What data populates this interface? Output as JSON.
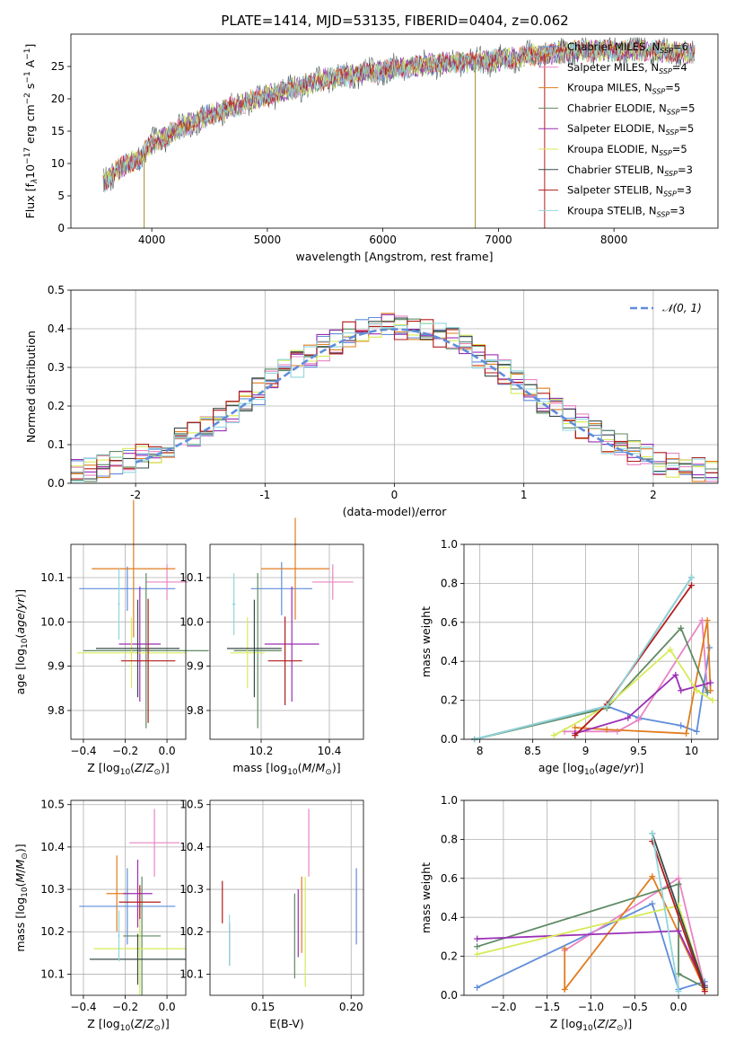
{
  "figure_title": "PLATE=1414, MJD=53135, FIBERID=0404, z=0.062",
  "series_styles": [
    {
      "name": "Chabrier MILES, N_SSP=6",
      "color": "#5f8ddb"
    },
    {
      "name": "Salpeter MILES, N_SSP=4",
      "color": "#e884c4"
    },
    {
      "name": "Kroupa MILES, N_SSP=5",
      "color": "#e07d20"
    },
    {
      "name": "Chabrier ELODIE, N_SSP=5",
      "color": "#5f8a63"
    },
    {
      "name": "Salpeter ELODIE, N_SSP=5",
      "color": "#9a2fb5"
    },
    {
      "name": "Kroupa ELODIE, N_SSP=5",
      "color": "#d8ea5a"
    },
    {
      "name": "Chabrier STELIB, N_SSP=3",
      "color": "#3a4a4a"
    },
    {
      "name": "Salpeter STELIB, N_SSP=3",
      "color": "#b31b1b"
    },
    {
      "name": "Kroupa STELIB, N_SSP=3",
      "color": "#8fd7dc"
    }
  ],
  "chart_data": [
    {
      "id": "spectrum",
      "type": "line",
      "xlabel": "wavelength [Angstrom, rest frame]",
      "ylabel": "Flux [f_λ 10^-17 erg cm^-2 s^-1 A^-1]",
      "xlim": [
        3300,
        8900
      ],
      "ylim": [
        0,
        30
      ],
      "xticks": [
        4000,
        5000,
        6000,
        7000,
        8000
      ],
      "yticks": [
        0,
        5,
        10,
        15,
        20,
        25
      ],
      "grid": false,
      "legend_position": "upper right",
      "legend": [
        {
          "label": "Chabrier MILES, N",
          "sub": "SSP",
          "suffix": "=6"
        },
        {
          "label": "Salpeter MILES, N",
          "sub": "SSP",
          "suffix": "=4"
        },
        {
          "label": "Kroupa MILES, N",
          "sub": "SSP",
          "suffix": "=5"
        },
        {
          "label": "Chabrier ELODIE, N",
          "sub": "SSP",
          "suffix": "=5"
        },
        {
          "label": "Salpeter ELODIE, N",
          "sub": "SSP",
          "suffix": "=5"
        },
        {
          "label": "Kroupa ELODIE, N",
          "sub": "SSP",
          "suffix": "=5"
        },
        {
          "label": "Chabrier STELIB, N",
          "sub": "SSP",
          "suffix": "=3"
        },
        {
          "label": "Salpeter STELIB, N",
          "sub": "SSP",
          "suffix": "=3"
        },
        {
          "label": "Kroupa STELIB, N",
          "sub": "SSP",
          "suffix": "=3"
        }
      ],
      "continuum": [
        [
          3580,
          7
        ],
        [
          3700,
          9
        ],
        [
          3800,
          10
        ],
        [
          3900,
          11
        ],
        [
          4000,
          13
        ],
        [
          4200,
          15
        ],
        [
          4500,
          17.5
        ],
        [
          5000,
          20.5
        ],
        [
          5500,
          23
        ],
        [
          6000,
          24.5
        ],
        [
          6500,
          25.5
        ],
        [
          7000,
          26
        ],
        [
          7400,
          27
        ],
        [
          7800,
          27.5
        ],
        [
          8300,
          27.5
        ],
        [
          8700,
          27
        ]
      ],
      "noise": 2.5,
      "absorption_lines": [
        [
          3934,
          0
        ],
        [
          6800,
          0
        ],
        [
          7400,
          0
        ]
      ]
    },
    {
      "id": "residuals",
      "type": "histogram",
      "xlabel": "(data-model)/error",
      "ylabel": "Normed distribution",
      "xlim": [
        -2.5,
        2.5
      ],
      "ylim": [
        0,
        0.5
      ],
      "xticks": [
        -2,
        -1,
        0,
        1,
        2
      ],
      "yticks": [
        0.0,
        0.1,
        0.2,
        0.3,
        0.4,
        0.5
      ],
      "grid": true,
      "reference_curve": {
        "label": "N(0,1)",
        "color": "#5f8ddb",
        "style": "dashed",
        "range": [
          -2,
          2
        ]
      },
      "bin_width": 0.1
    },
    {
      "id": "age_vs_Z",
      "type": "errorbar",
      "xlabel": "Z [log10(Z/Z⊙)]",
      "ylabel": "age [log10(age/yr)]",
      "xlim": [
        -0.46,
        0.09
      ],
      "ylim": [
        9.735,
        10.175
      ],
      "xticks": [
        -0.4,
        -0.2,
        0.0
      ],
      "xtick_labels": [
        "−0.4",
        "−0.2",
        "0.0"
      ],
      "yticks": [
        9.8,
        9.9,
        10.0,
        10.1
      ],
      "grid": true,
      "points": [
        {
          "x": -0.19,
          "xerr": 0.23,
          "y": 10.075,
          "yerr": 0.05
        },
        {
          "x": 0.0,
          "xerr": 0.1,
          "y": 10.09,
          "yerr": 0.04
        },
        {
          "x": -0.16,
          "xerr": 0.2,
          "y": 10.12,
          "yerr": 0.155
        },
        {
          "x": -0.1,
          "xerr": 0.3,
          "y": 9.935,
          "yerr": 0.175
        },
        {
          "x": -0.13,
          "xerr": 0.1,
          "y": 9.95,
          "yerr": 0.13
        },
        {
          "x": -0.17,
          "xerr": 0.26,
          "y": 9.93,
          "yerr": 0.08
        },
        {
          "x": -0.14,
          "xerr": 0.2,
          "y": 9.94,
          "yerr": 0.11
        },
        {
          "x": -0.09,
          "xerr": 0.13,
          "y": 9.912,
          "yerr": 0.14
        },
        {
          "x": -0.23,
          "xerr": 0.005,
          "y": 10.04,
          "yerr": 0.08
        }
      ]
    },
    {
      "id": "age_vs_mass",
      "type": "errorbar",
      "xlabel": "mass [log10(M/M⊙)]",
      "ylabel": "",
      "xlim": [
        10.05,
        10.5
      ],
      "ylim": [
        9.735,
        10.175
      ],
      "xticks": [
        10.2,
        10.4
      ],
      "xtick_labels": [
        "10.2",
        "10.4"
      ],
      "yticks": [
        9.8,
        9.9,
        10.0,
        10.1
      ],
      "grid": true,
      "points": [
        {
          "x": 10.26,
          "xerr": 0.09,
          "y": 10.075,
          "yerr": 0.06
        },
        {
          "x": 10.41,
          "xerr": 0.06,
          "y": 10.09,
          "yerr": 0.04
        },
        {
          "x": 10.3,
          "xerr": 0.1,
          "y": 10.12,
          "yerr": 0.115
        },
        {
          "x": 10.19,
          "xerr": 0.07,
          "y": 9.935,
          "yerr": 0.175
        },
        {
          "x": 10.29,
          "xerr": 0.08,
          "y": 9.95,
          "yerr": 0.13
        },
        {
          "x": 10.16,
          "xerr": 0.05,
          "y": 9.93,
          "yerr": 0.08
        },
        {
          "x": 10.18,
          "xerr": 0.08,
          "y": 9.94,
          "yerr": 0.11
        },
        {
          "x": 10.27,
          "xerr": 0.05,
          "y": 9.912,
          "yerr": 0.1
        },
        {
          "x": 10.12,
          "xerr": 0.005,
          "y": 10.04,
          "yerr": 0.07
        }
      ]
    },
    {
      "id": "massweight_vs_age",
      "type": "line",
      "xlabel": "age [log10(age/yr)]",
      "ylabel": "mass weight",
      "xlim": [
        7.85,
        10.25
      ],
      "ylim": [
        0,
        1
      ],
      "xticks": [
        8.0,
        8.5,
        9.0,
        9.5,
        10.0
      ],
      "yticks": [
        0.0,
        0.2,
        0.4,
        0.6,
        0.8,
        1.0
      ],
      "grid": true,
      "series": [
        {
          "x": [
            7.95,
            9.2,
            9.5,
            9.9,
            10.05,
            10.17
          ],
          "y": [
            0.0,
            0.17,
            0.11,
            0.07,
            0.04,
            0.47
          ]
        },
        {
          "x": [
            8.8,
            9.3,
            9.5,
            10.1,
            10.15
          ],
          "y": [
            0.04,
            0.04,
            0.1,
            0.61,
            0.25
          ]
        },
        {
          "x": [
            8.9,
            9.2,
            9.95,
            10.15,
            10.18
          ],
          "y": [
            0.06,
            0.05,
            0.03,
            0.61,
            0.25
          ]
        },
        {
          "x": [
            7.95,
            9.2,
            9.9,
            10.15
          ],
          "y": [
            0.0,
            0.16,
            0.57,
            0.24
          ]
        },
        {
          "x": [
            8.9,
            9.4,
            9.85,
            9.9,
            10.18
          ],
          "y": [
            0.03,
            0.11,
            0.33,
            0.25,
            0.29
          ]
        },
        {
          "x": [
            8.7,
            9.2,
            9.8,
            10.05,
            10.2
          ],
          "y": [
            0.02,
            0.17,
            0.46,
            0.25,
            0.2
          ]
        },
        {
          "x": [
            7.95,
            9.2,
            10.0
          ],
          "y": [
            0.0,
            0.17,
            0.83
          ]
        },
        {
          "x": [
            8.9,
            9.2,
            10.0
          ],
          "y": [
            0.02,
            0.18,
            0.79
          ]
        },
        {
          "x": [
            7.95,
            9.2,
            10.0
          ],
          "y": [
            0.0,
            0.17,
            0.83
          ]
        }
      ]
    },
    {
      "id": "mass_vs_Z",
      "type": "errorbar",
      "xlabel": "Z [log10(Z/Z⊙)]",
      "ylabel": "mass [log10(M/M⊙)]",
      "xlim": [
        -0.46,
        0.09
      ],
      "ylim": [
        10.05,
        10.51
      ],
      "xticks": [
        -0.4,
        -0.2,
        0.0
      ],
      "xtick_labels": [
        "−0.4",
        "−0.2",
        "0.0"
      ],
      "yticks": [
        10.1,
        10.2,
        10.3,
        10.4,
        10.5
      ],
      "grid": true,
      "points": [
        {
          "x": -0.19,
          "xerr": 0.23,
          "y": 10.26,
          "yerr": 0.09
        },
        {
          "x": -0.06,
          "xerr": 0.12,
          "y": 10.41,
          "yerr": 0.08
        },
        {
          "x": -0.24,
          "xerr": 0.05,
          "y": 10.29,
          "yerr": 0.09
        },
        {
          "x": -0.12,
          "xerr": 0.09,
          "y": 10.19,
          "yerr": 0.14
        },
        {
          "x": -0.14,
          "xerr": 0.07,
          "y": 10.29,
          "yerr": 0.08
        },
        {
          "x": -0.13,
          "xerr": 0.22,
          "y": 10.16,
          "yerr": 0.11
        },
        {
          "x": -0.14,
          "xerr": 0.23,
          "y": 10.135,
          "yerr": 0.06
        },
        {
          "x": -0.13,
          "xerr": 0.1,
          "y": 10.27,
          "yerr": 0.04
        },
        {
          "x": -0.23,
          "xerr": 0.005,
          "y": 10.19,
          "yerr": 0.06
        }
      ]
    },
    {
      "id": "mass_vs_EBV",
      "type": "errorbar",
      "xlabel": "E(B-V)",
      "ylabel": "",
      "xlim": [
        0.12,
        0.207
      ],
      "ylim": [
        10.05,
        10.51
      ],
      "xticks": [
        0.15,
        0.2
      ],
      "xtick_labels": [
        "0.15",
        "0.20"
      ],
      "yticks": [
        10.1,
        10.2,
        10.3,
        10.4,
        10.5
      ],
      "grid": true,
      "points": [
        {
          "x": 0.203,
          "xerr": 0.0,
          "y": 10.26,
          "yerr": 0.09
        },
        {
          "x": 0.176,
          "xerr": 0.0,
          "y": 10.41,
          "yerr": 0.08
        },
        {
          "x": 0.172,
          "xerr": 0.0,
          "y": 10.24,
          "yerr": 0.09
        },
        {
          "x": 0.168,
          "xerr": 0.0,
          "y": 10.19,
          "yerr": 0.1
        },
        {
          "x": 0.17,
          "xerr": 0.0,
          "y": 10.22,
          "yerr": 0.08
        },
        {
          "x": 0.174,
          "xerr": 0.0,
          "y": 10.2,
          "yerr": 0.13
        },
        {
          "x": 0.131,
          "xerr": 0.0,
          "y": 10.17,
          "yerr": 0.05
        },
        {
          "x": 0.127,
          "xerr": 0.0,
          "y": 10.27,
          "yerr": 0.05
        },
        {
          "x": 0.131,
          "xerr": 0.0,
          "y": 10.18,
          "yerr": 0.06
        }
      ]
    },
    {
      "id": "massweight_vs_Z",
      "type": "line",
      "xlabel": "Z [log10(Z/Z⊙)]",
      "ylabel": "mass weight",
      "xlim": [
        -2.45,
        0.45
      ],
      "ylim": [
        0,
        1
      ],
      "xticks": [
        -2.0,
        -1.5,
        -1.0,
        -0.5,
        0.0
      ],
      "xtick_labels": [
        "−2.0",
        "−1.5",
        "−1.0",
        "−0.5",
        "0.0"
      ],
      "yticks": [
        0.0,
        0.2,
        0.4,
        0.6,
        0.8,
        1.0
      ],
      "grid": true,
      "series": [
        {
          "x": [
            -2.3,
            -0.3,
            0.0,
            0.3
          ],
          "y": [
            0.04,
            0.47,
            0.03,
            0.07
          ]
        },
        {
          "x": [
            -1.3,
            0.0,
            0.3
          ],
          "y": [
            0.23,
            0.6,
            0.04
          ]
        },
        {
          "x": [
            -1.3,
            -1.3,
            -0.3,
            0.3
          ],
          "y": [
            0.24,
            0.03,
            0.61,
            0.03
          ]
        },
        {
          "x": [
            -2.3,
            0.0,
            0.0,
            0.3
          ],
          "y": [
            0.25,
            0.57,
            0.11,
            0.04
          ]
        },
        {
          "x": [
            -2.3,
            0.0,
            0.3
          ],
          "y": [
            0.29,
            0.33,
            0.05
          ]
        },
        {
          "x": [
            -2.3,
            0.0,
            0.3
          ],
          "y": [
            0.21,
            0.46,
            0.04
          ]
        },
        {
          "x": [
            -0.3,
            0.3
          ],
          "y": [
            0.83,
            0.04
          ]
        },
        {
          "x": [
            -0.3,
            0.3
          ],
          "y": [
            0.79,
            0.02
          ]
        },
        {
          "x": [
            -0.3,
            0.0
          ],
          "y": [
            0.83,
            0.02
          ]
        }
      ]
    }
  ]
}
